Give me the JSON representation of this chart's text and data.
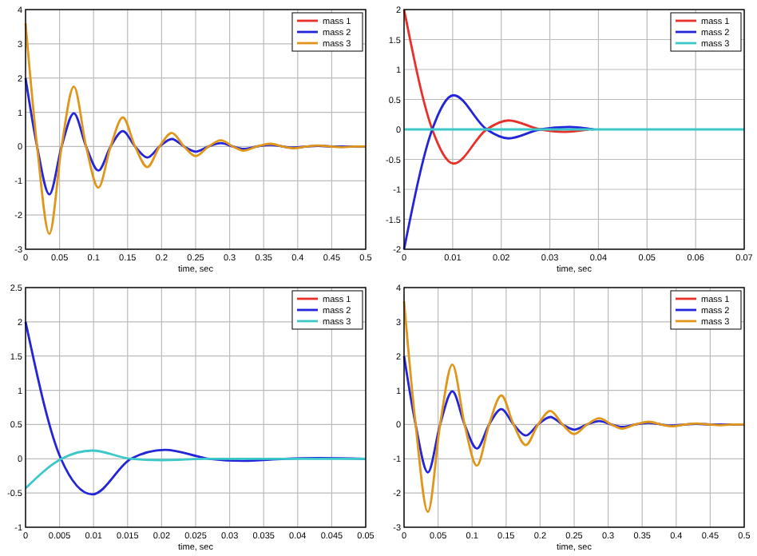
{
  "chart_data": [
    {
      "type": "line",
      "xlabel": "time, sec",
      "xlim": [
        0,
        0.5
      ],
      "xticks": [
        0,
        0.05,
        0.1,
        0.15,
        0.2,
        0.25,
        0.3,
        0.35,
        0.4,
        0.45,
        0.5
      ],
      "ylim": [
        -3,
        4
      ],
      "yticks": [
        -3,
        -2,
        -1,
        0,
        1,
        2,
        3,
        4
      ],
      "grid": true,
      "legend": "top right",
      "series": [
        {
          "name": "mass 1",
          "color": "#e8302a"
        },
        {
          "name": "mass 2",
          "color": "#2424d8",
          "x": [
            0,
            0.017,
            0.035,
            0.053,
            0.071,
            0.089,
            0.107,
            0.125,
            0.143,
            0.161,
            0.179,
            0.197,
            0.215,
            0.233,
            0.25,
            0.269,
            0.287,
            0.305,
            0.32,
            0.34,
            0.36,
            0.378,
            0.395,
            0.413,
            0.43,
            0.45,
            0.5
          ],
          "values": [
            2,
            0,
            -1.4,
            0,
            0.97,
            0,
            -0.7,
            0,
            0.45,
            0,
            -0.32,
            0,
            0.22,
            0,
            -0.15,
            0,
            0.1,
            0,
            -0.07,
            0,
            0.05,
            0,
            -0.03,
            0,
            0.02,
            0,
            0
          ]
        },
        {
          "name": "mass 3",
          "color": "#e0961a",
          "x": [
            0,
            0.017,
            0.035,
            0.053,
            0.071,
            0.089,
            0.107,
            0.125,
            0.143,
            0.161,
            0.179,
            0.197,
            0.215,
            0.233,
            0.25,
            0.269,
            0.287,
            0.305,
            0.32,
            0.34,
            0.36,
            0.378,
            0.395,
            0.413,
            0.43,
            0.448,
            0.465,
            0.483,
            0.5
          ],
          "values": [
            3.6,
            0,
            -2.55,
            0,
            1.75,
            0,
            -1.2,
            0,
            0.85,
            0,
            -0.6,
            0,
            0.4,
            0,
            -0.28,
            0,
            0.18,
            0,
            -0.12,
            0,
            0.08,
            0,
            -0.05,
            0,
            0.03,
            0,
            -0.02,
            0,
            0
          ]
        }
      ]
    },
    {
      "type": "line",
      "xlabel": "time, sec",
      "xlim": [
        0,
        0.07
      ],
      "xticks": [
        0,
        0.01,
        0.02,
        0.03,
        0.04,
        0.05,
        0.06,
        0.07
      ],
      "ylim": [
        -2,
        2
      ],
      "yticks": [
        -2,
        -1.5,
        -1,
        -0.5,
        0,
        0.5,
        1,
        1.5,
        2
      ],
      "grid": true,
      "legend": "top right",
      "series": [
        {
          "name": "mass 1",
          "color": "#e8302a",
          "x": [
            0,
            0.0058,
            0.0102,
            0.017,
            0.0215,
            0.028,
            0.033,
            0.038
          ],
          "values": [
            2,
            0,
            -0.57,
            0,
            0.15,
            0,
            -0.04,
            0
          ]
        },
        {
          "name": "mass 2",
          "color": "#2424d8",
          "x": [
            0,
            0.0058,
            0.0102,
            0.017,
            0.0215,
            0.028,
            0.034,
            0.039
          ],
          "values": [
            -2,
            0,
            0.57,
            0,
            -0.15,
            0,
            0.04,
            0
          ]
        },
        {
          "name": "mass 3",
          "color": "#3cc8c8",
          "x": [
            0,
            0.07
          ],
          "values": [
            0,
            0
          ]
        }
      ]
    },
    {
      "type": "line",
      "xlabel": "time, sec",
      "xlim": [
        0,
        0.05
      ],
      "xticks": [
        0,
        0.005,
        0.01,
        0.015,
        0.02,
        0.025,
        0.03,
        0.035,
        0.04,
        0.045,
        0.05
      ],
      "ylim": [
        -1,
        2.5
      ],
      "yticks": [
        -1,
        -0.5,
        0,
        0.5,
        1,
        1.5,
        2,
        2.5
      ],
      "grid": true,
      "legend": "top right",
      "series": [
        {
          "name": "mass 1",
          "color": "#e8302a"
        },
        {
          "name": "mass 2",
          "color": "#2424d8",
          "x": [
            0,
            0.0052,
            0.0098,
            0.0155,
            0.0205,
            0.027,
            0.032,
            0.038,
            0.043,
            0.05
          ],
          "values": [
            2,
            0,
            -0.52,
            0,
            0.13,
            0,
            -0.03,
            0,
            0.01,
            0
          ]
        },
        {
          "name": "mass 3",
          "color": "#3cc8c8",
          "x": [
            0,
            0.0053,
            0.0098,
            0.0155,
            0.02,
            0.027,
            0.05
          ],
          "values": [
            -0.43,
            0,
            0.12,
            0,
            -0.02,
            0,
            0
          ]
        }
      ]
    },
    {
      "type": "line",
      "xlabel": "time, sec",
      "xlim": [
        0,
        0.5
      ],
      "xticks": [
        0,
        0.05,
        0.1,
        0.15,
        0.2,
        0.25,
        0.3,
        0.35,
        0.4,
        0.45,
        0.5
      ],
      "ylim": [
        -3,
        4
      ],
      "yticks": [
        -3,
        -2,
        -1,
        0,
        1,
        2,
        3,
        4
      ],
      "grid": true,
      "legend": "top right",
      "series": [
        {
          "name": "mass 1",
          "color": "#e8302a"
        },
        {
          "name": "mass 2",
          "color": "#2424d8",
          "x": [
            0,
            0.017,
            0.035,
            0.053,
            0.071,
            0.089,
            0.107,
            0.125,
            0.143,
            0.161,
            0.179,
            0.197,
            0.215,
            0.233,
            0.25,
            0.269,
            0.287,
            0.305,
            0.32,
            0.34,
            0.36,
            0.378,
            0.395,
            0.413,
            0.43,
            0.45,
            0.5
          ],
          "values": [
            2,
            0,
            -1.4,
            0,
            0.97,
            0,
            -0.7,
            0,
            0.45,
            0,
            -0.32,
            0,
            0.22,
            0,
            -0.15,
            0,
            0.1,
            0,
            -0.07,
            0,
            0.05,
            0,
            -0.03,
            0,
            0.02,
            0,
            0
          ]
        },
        {
          "name": "mass 3",
          "color": "#e0961a",
          "x": [
            0,
            0.017,
            0.035,
            0.053,
            0.071,
            0.089,
            0.107,
            0.125,
            0.143,
            0.161,
            0.179,
            0.197,
            0.215,
            0.233,
            0.25,
            0.269,
            0.287,
            0.305,
            0.32,
            0.34,
            0.36,
            0.378,
            0.395,
            0.413,
            0.43,
            0.448,
            0.465,
            0.483,
            0.5
          ],
          "values": [
            3.6,
            0,
            -2.55,
            0,
            1.75,
            0,
            -1.2,
            0,
            0.85,
            0,
            -0.6,
            0,
            0.4,
            0,
            -0.28,
            0,
            0.18,
            0,
            -0.12,
            0,
            0.08,
            0,
            -0.05,
            0,
            0.03,
            0,
            -0.02,
            0,
            0
          ]
        }
      ]
    }
  ]
}
